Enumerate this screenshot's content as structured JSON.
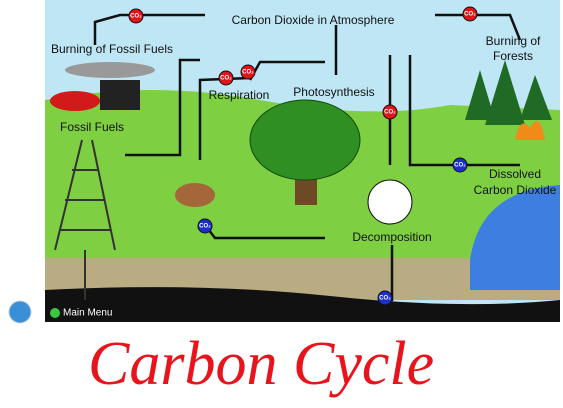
{
  "labels": {
    "atmosphere": "Carbon Dioxide in Atmosphere",
    "burning_fossil_fuels": "Burning of Fossil Fuels",
    "burning_forests": [
      "Burning of",
      "Forests"
    ],
    "respiration": "Respiration",
    "photosynthesis": "Photosynthesis",
    "fossil_fuels": "Fossil Fuels",
    "dissolved": [
      "Dissolved",
      "Carbon Dioxide"
    ],
    "decomposition": "Decomposition"
  },
  "badges": [
    {
      "label": "CO₂",
      "color": "#e0141b"
    },
    {
      "label": "CO₂",
      "color": "#e0141b"
    },
    {
      "label": "CO₂",
      "color": "#e0141b"
    },
    {
      "label": "CO₂",
      "color": "#e0141b"
    },
    {
      "label": "CO₂",
      "color": "#e0141b"
    },
    {
      "label": "CO₂",
      "color": "#1a2fd0"
    },
    {
      "label": "CO₂",
      "color": "#1a2fd0"
    },
    {
      "label": "CO₂",
      "color": "#1a2fd0"
    }
  ],
  "menu": "Main Menu",
  "handwritten": "Carbon Cycle"
}
